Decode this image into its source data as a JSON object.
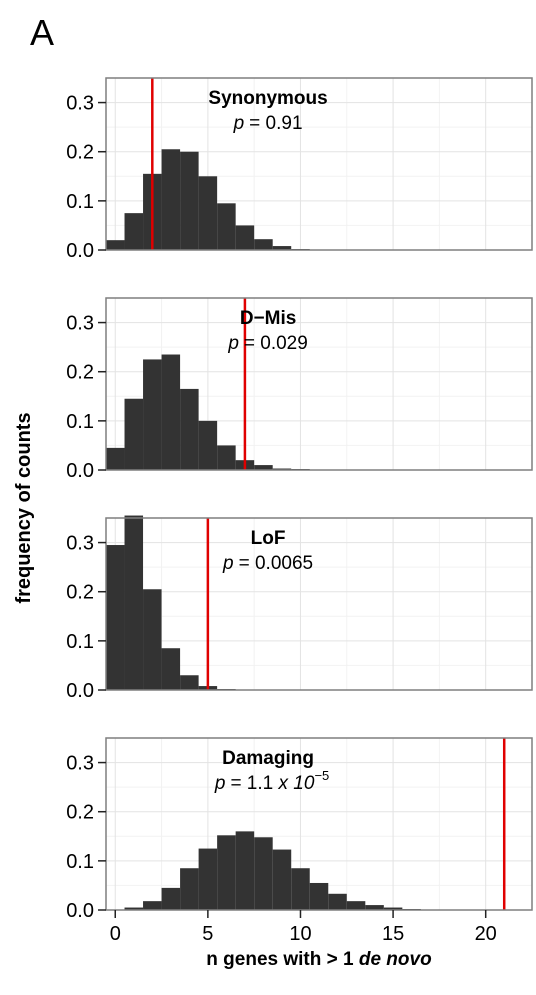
{
  "panel_label": "A",
  "chart_data": {
    "type": "bar",
    "ylabel": "frequency of counts",
    "xlabel": {
      "prefix": "n genes with > 1 ",
      "italic": "de novo"
    },
    "x_ticks": [
      0,
      5,
      10,
      15,
      20
    ],
    "y_ticks": [
      0.0,
      0.1,
      0.2,
      0.3
    ],
    "y_tick_labels": [
      "0.0",
      "0.1",
      "0.2",
      "0.3"
    ],
    "xlim": [
      -0.5,
      22.5
    ],
    "ylim": [
      0,
      0.35
    ],
    "bin_width": 1,
    "bar_color": "#333333",
    "observed_line_color": "#e00000",
    "grid": true,
    "panels": [
      {
        "title": "Synonymous",
        "p_label": "p",
        "p_value": "= 0.91",
        "observed": 2,
        "bins": [
          0,
          1,
          2,
          3,
          4,
          5,
          6,
          7,
          8,
          9,
          10
        ],
        "values": [
          0.02,
          0.075,
          0.155,
          0.205,
          0.2,
          0.15,
          0.095,
          0.05,
          0.022,
          0.008,
          0.002
        ]
      },
      {
        "title": "D−Mis",
        "p_label": "p",
        "p_value": "= 0.029",
        "observed": 7,
        "bins": [
          0,
          1,
          2,
          3,
          4,
          5,
          6,
          7,
          8,
          9,
          10,
          11
        ],
        "values": [
          0.045,
          0.145,
          0.225,
          0.235,
          0.165,
          0.1,
          0.05,
          0.02,
          0.01,
          0.003,
          0.002,
          0.001
        ]
      },
      {
        "title": "LoF",
        "p_label": "p",
        "p_value": "= 0.0065",
        "observed": 5,
        "bins": [
          0,
          1,
          2,
          3,
          4,
          5,
          6,
          7
        ],
        "values": [
          0.295,
          0.355,
          0.205,
          0.085,
          0.03,
          0.008,
          0.002,
          0.001
        ]
      },
      {
        "title": "Damaging",
        "p_label": "p",
        "p_value": "= 1.1 ",
        "p_sci": "x 10",
        "p_exp": "−5",
        "observed": 21,
        "bins": [
          0,
          1,
          2,
          3,
          4,
          5,
          6,
          7,
          8,
          9,
          10,
          11,
          12,
          13,
          14,
          15,
          16,
          17,
          18
        ],
        "values": [
          0.001,
          0.005,
          0.018,
          0.045,
          0.085,
          0.125,
          0.152,
          0.16,
          0.148,
          0.123,
          0.085,
          0.055,
          0.033,
          0.018,
          0.01,
          0.005,
          0.002,
          0.001,
          0.0005
        ]
      }
    ]
  }
}
